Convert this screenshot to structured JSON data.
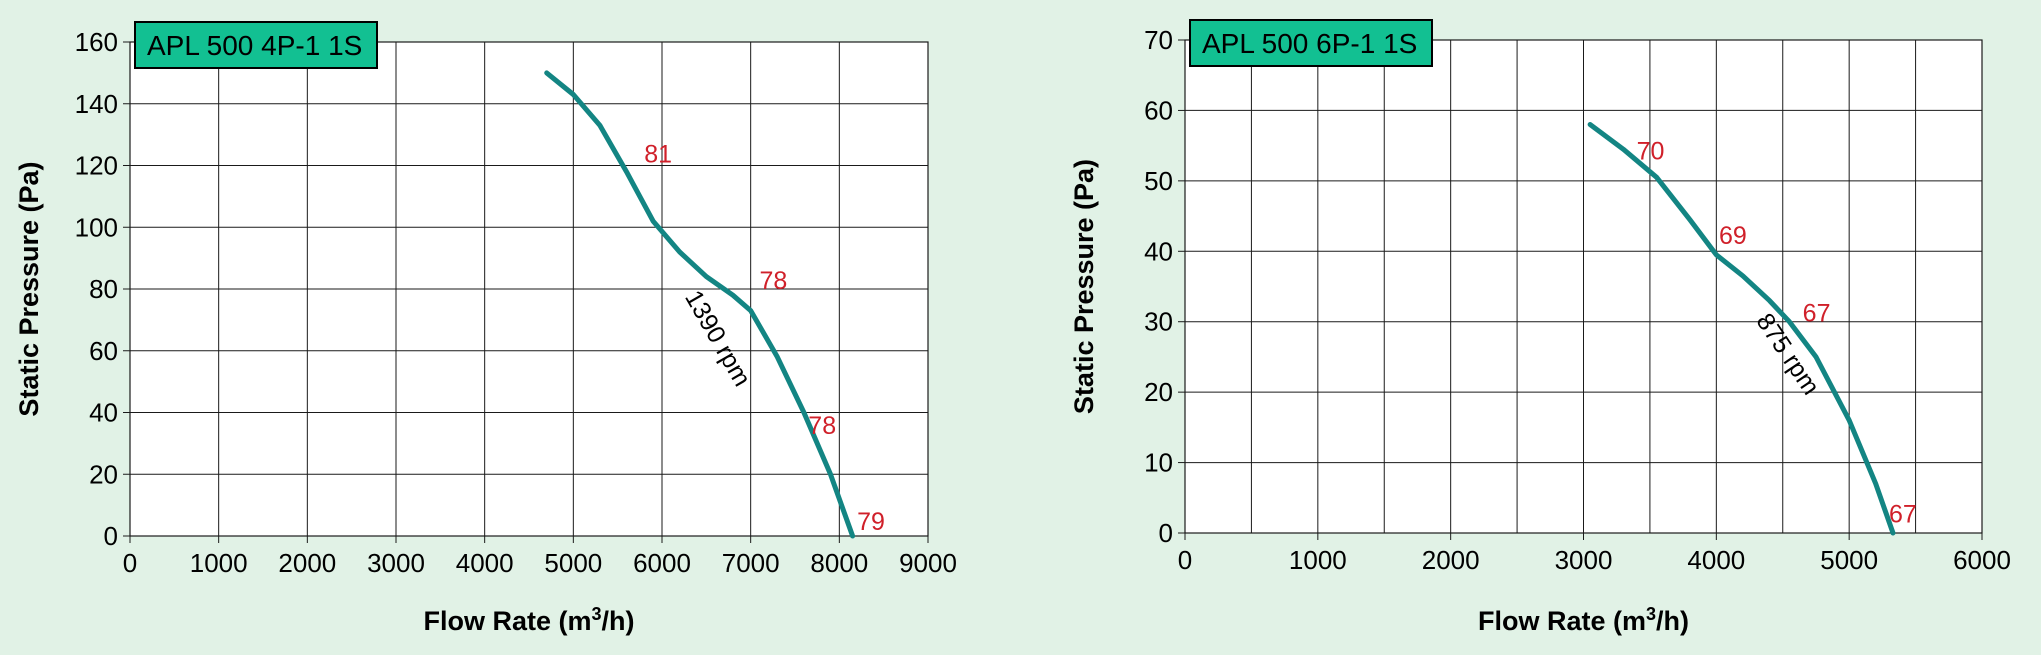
{
  "chart_data": [
    {
      "type": "line",
      "title": "APL 500 4P-1 1S",
      "xlabel": "Flow Rate (m³/h)",
      "xlabel_main": "Flow Rate (m",
      "xlabel_sup": "3",
      "xlabel_end": "/h)",
      "ylabel": "Static Pressure (Pa)",
      "xlim": [
        0,
        9000
      ],
      "ylim": [
        0,
        160
      ],
      "xticks": [
        0,
        1000,
        2000,
        3000,
        4000,
        5000,
        6000,
        7000,
        8000,
        9000
      ],
      "yticks": [
        0,
        20,
        40,
        60,
        80,
        100,
        120,
        140,
        160
      ],
      "grid": true,
      "colors": {
        "curve": "#138583",
        "labels": "#d0202a",
        "title_box": "#12c092"
      },
      "series": [
        {
          "curve_label": "1390 rpm",
          "x": [
            4700,
            5000,
            5300,
            5600,
            5900,
            6200,
            6500,
            6800,
            7000,
            7300,
            7600,
            7900,
            8150
          ],
          "y": [
            150,
            143,
            133,
            118,
            102,
            92,
            84,
            78,
            73,
            58,
            40,
            20,
            0
          ]
        }
      ],
      "annotations": [
        {
          "text": "81",
          "x": 5800,
          "y": 121
        },
        {
          "text": "78",
          "x": 7100,
          "y": 80
        },
        {
          "text": "78",
          "x": 7650,
          "y": 33
        },
        {
          "text": "79",
          "x": 8200,
          "y": 2
        }
      ]
    },
    {
      "type": "line",
      "title": "APL 500 6P-1 1S",
      "xlabel": "Flow Rate (m³/h)",
      "xlabel_main": "Flow Rate (m",
      "xlabel_sup": "3",
      "xlabel_end": "/h)",
      "ylabel": "Static Pressure (Pa)",
      "xlim": [
        0,
        6000
      ],
      "ylim": [
        0,
        70
      ],
      "xticks": [
        0,
        1000,
        2000,
        3000,
        4000,
        5000,
        6000
      ],
      "yticks": [
        0,
        10,
        20,
        30,
        40,
        50,
        60,
        70
      ],
      "xgrid_step": 500,
      "grid": true,
      "colors": {
        "curve": "#138583",
        "labels": "#d0202a",
        "title_box": "#12c092"
      },
      "series": [
        {
          "curve_label": "875 rpm",
          "x": [
            3050,
            3300,
            3550,
            3800,
            4000,
            4200,
            4400,
            4550,
            4750,
            5000,
            5200,
            5330
          ],
          "y": [
            58,
            54.5,
            50.5,
            44.5,
            39.5,
            36.5,
            33,
            30,
            25,
            16,
            7,
            0
          ]
        }
      ],
      "annotations": [
        {
          "text": "70",
          "x": 3400,
          "y": 53
        },
        {
          "text": "69",
          "x": 4020,
          "y": 41
        },
        {
          "text": "67",
          "x": 4650,
          "y": 30
        },
        {
          "text": "67",
          "x": 5300,
          "y": 1.5
        }
      ]
    }
  ]
}
